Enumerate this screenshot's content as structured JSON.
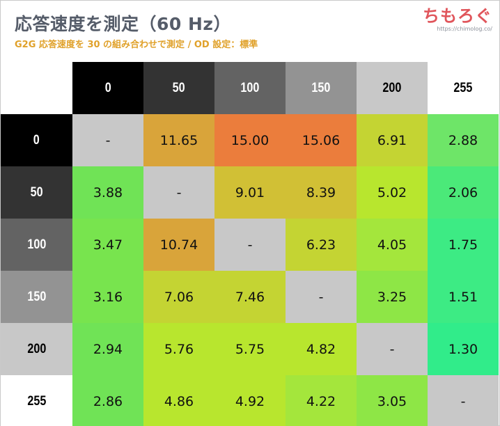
{
  "header": {
    "title": "応答速度を測定（60 Hz）",
    "subtitle": "G2G 応答速度を 30 の組み合わせで測定 / OD 設定：標準",
    "logo_text": "ちもろぐ",
    "logo_url": "https://chimolog.co/"
  },
  "chart_data": {
    "type": "heatmap",
    "title": "応答速度を測定（60 Hz）",
    "subtitle": "G2G 応答速度を 30 の組み合わせで測定 / OD 設定：標準",
    "x": [
      "0",
      "50",
      "100",
      "150",
      "200",
      "255"
    ],
    "y": [
      "0",
      "50",
      "100",
      "150",
      "200",
      "255"
    ],
    "values": [
      [
        null,
        11.65,
        15.0,
        15.06,
        6.91,
        2.88
      ],
      [
        3.88,
        null,
        9.01,
        8.39,
        5.02,
        2.06
      ],
      [
        3.47,
        10.74,
        null,
        6.23,
        4.05,
        1.75
      ],
      [
        3.16,
        7.06,
        7.46,
        null,
        3.25,
        1.51
      ],
      [
        2.94,
        5.76,
        5.75,
        4.82,
        null,
        1.3
      ],
      [
        2.86,
        4.86,
        4.92,
        4.22,
        3.05,
        null
      ]
    ],
    "labels": [
      [
        "-",
        "11.65",
        "15.00",
        "15.06",
        "6.91",
        "2.88"
      ],
      [
        "3.88",
        "-",
        "9.01",
        "8.39",
        "5.02",
        "2.06"
      ],
      [
        "3.47",
        "10.74",
        "-",
        "6.23",
        "4.05",
        "1.75"
      ],
      [
        "3.16",
        "7.06",
        "7.46",
        "-",
        "3.25",
        "1.51"
      ],
      [
        "2.94",
        "5.76",
        "5.75",
        "4.82",
        "-",
        "1.30"
      ],
      [
        "2.86",
        "4.86",
        "4.92",
        "4.22",
        "3.05",
        "-"
      ]
    ],
    "header_colors": [
      "#000000",
      "#333333",
      "#636363",
      "#939393",
      "#c8c8c8",
      "#ffffff"
    ],
    "header_text_colors": [
      "#ffffff",
      "#ffffff",
      "#ffffff",
      "#ffffff",
      "#000000",
      "#000000"
    ],
    "cell_colors": [
      [
        "#c8c8c8",
        "#d9a43a",
        "#eb7d3c",
        "#eb7d3c",
        "#c4d433",
        "#6ee568"
      ],
      [
        "#70e356",
        "#c8c8c8",
        "#d1c035",
        "#d1c035",
        "#b8e62e",
        "#4be979"
      ],
      [
        "#78e44e",
        "#d9a43a",
        "#c8c8c8",
        "#c4d433",
        "#a4e63c",
        "#3deb84"
      ],
      [
        "#78e44e",
        "#c4d433",
        "#c4d433",
        "#c8c8c8",
        "#8ee646",
        "#3deb84"
      ],
      [
        "#70e356",
        "#b8e62e",
        "#b8e62e",
        "#b8e62e",
        "#c8c8c8",
        "#31ec8a"
      ],
      [
        "#70e356",
        "#b8e62e",
        "#b8e62e",
        "#a4e63c",
        "#8ee646",
        "#c8c8c8"
      ]
    ]
  }
}
